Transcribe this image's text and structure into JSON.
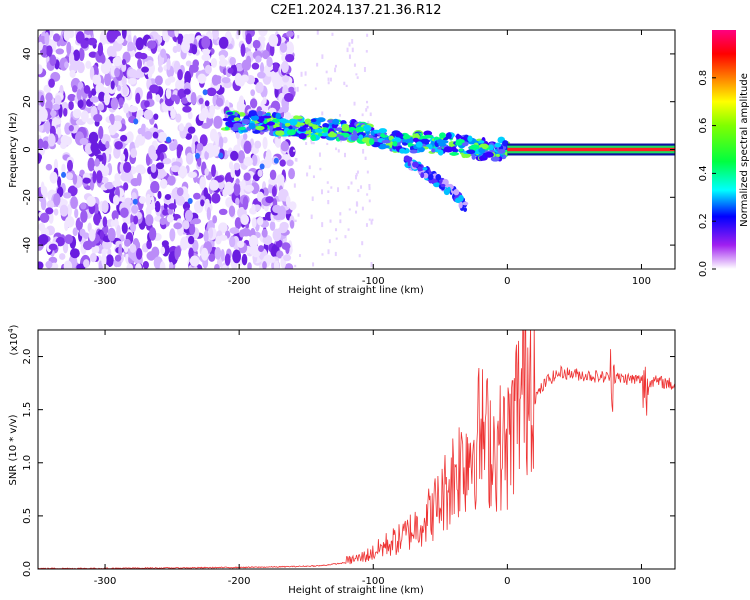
{
  "title": "C2E1.2024.137.21.36.R12",
  "chart_data": [
    {
      "type": "heatmap",
      "xlabel": "Height of straight line (km)",
      "ylabel": "Frequency (Hz)",
      "xlim": [
        -350,
        125
      ],
      "ylim": [
        -50,
        50
      ],
      "xticks": [
        -300,
        -200,
        -100,
        0,
        100
      ],
      "yticks": [
        -40,
        -20,
        0,
        20,
        40
      ],
      "colorbar": {
        "label": "Normalized spectral amplitude",
        "range": [
          0.0,
          1.0
        ],
        "ticks": [
          "0.0",
          "0.2",
          "0.4",
          "0.6",
          "0.8"
        ],
        "tick_values": [
          0.0,
          0.2,
          0.4,
          0.6,
          0.8
        ]
      },
      "features": {
        "noise_region_x": [
          -350,
          -160
        ],
        "ridge": [
          [
            -210,
            12
          ],
          [
            -180,
            11
          ],
          [
            -150,
            9
          ],
          [
            -120,
            8
          ],
          [
            -100,
            6
          ],
          [
            -80,
            3
          ],
          [
            -60,
            3
          ],
          [
            -40,
            2
          ],
          [
            -20,
            0
          ],
          [
            0,
            0
          ]
        ],
        "branch": [
          [
            -75,
            -5
          ],
          [
            -60,
            -10
          ],
          [
            -40,
            -18
          ],
          [
            -30,
            -25
          ]
        ],
        "steady_tone_x": [
          0,
          125
        ],
        "steady_tone_freq": 0
      }
    },
    {
      "type": "line",
      "xlabel": "Height of straight line (km)",
      "ylabel": "SNR (10 * v/v)",
      "yscale_note": "(x10",
      "yscale_exp": "4",
      "yscale_close": ")",
      "xlim": [
        -350,
        125
      ],
      "ylim": [
        0,
        2.25
      ],
      "xticks": [
        -300,
        -200,
        -100,
        0,
        100
      ],
      "yticks": [
        "0.0",
        "0.5",
        "1.0",
        "1.5",
        "2.0"
      ],
      "ytick_values": [
        0.0,
        0.5,
        1.0,
        1.5,
        2.0
      ],
      "color": "#ee3333",
      "series": [
        {
          "x": [
            -350,
            -300,
            -250,
            -200,
            -170,
            -140,
            -120,
            -110,
            -100,
            -90,
            -80,
            -70,
            -60,
            -50,
            -40,
            -30,
            -20,
            -10,
            0,
            10,
            20,
            30,
            40,
            60,
            80,
            100,
            120,
            125
          ],
          "values": [
            0.005,
            0.006,
            0.01,
            0.015,
            0.02,
            0.03,
            0.06,
            0.08,
            0.12,
            0.18,
            0.22,
            0.3,
            0.38,
            0.5,
            0.7,
            0.85,
            1.0,
            0.9,
            0.9,
            1.3,
            1.6,
            1.78,
            1.85,
            1.82,
            1.8,
            1.78,
            1.75,
            1.72
          ]
        }
      ]
    }
  ]
}
